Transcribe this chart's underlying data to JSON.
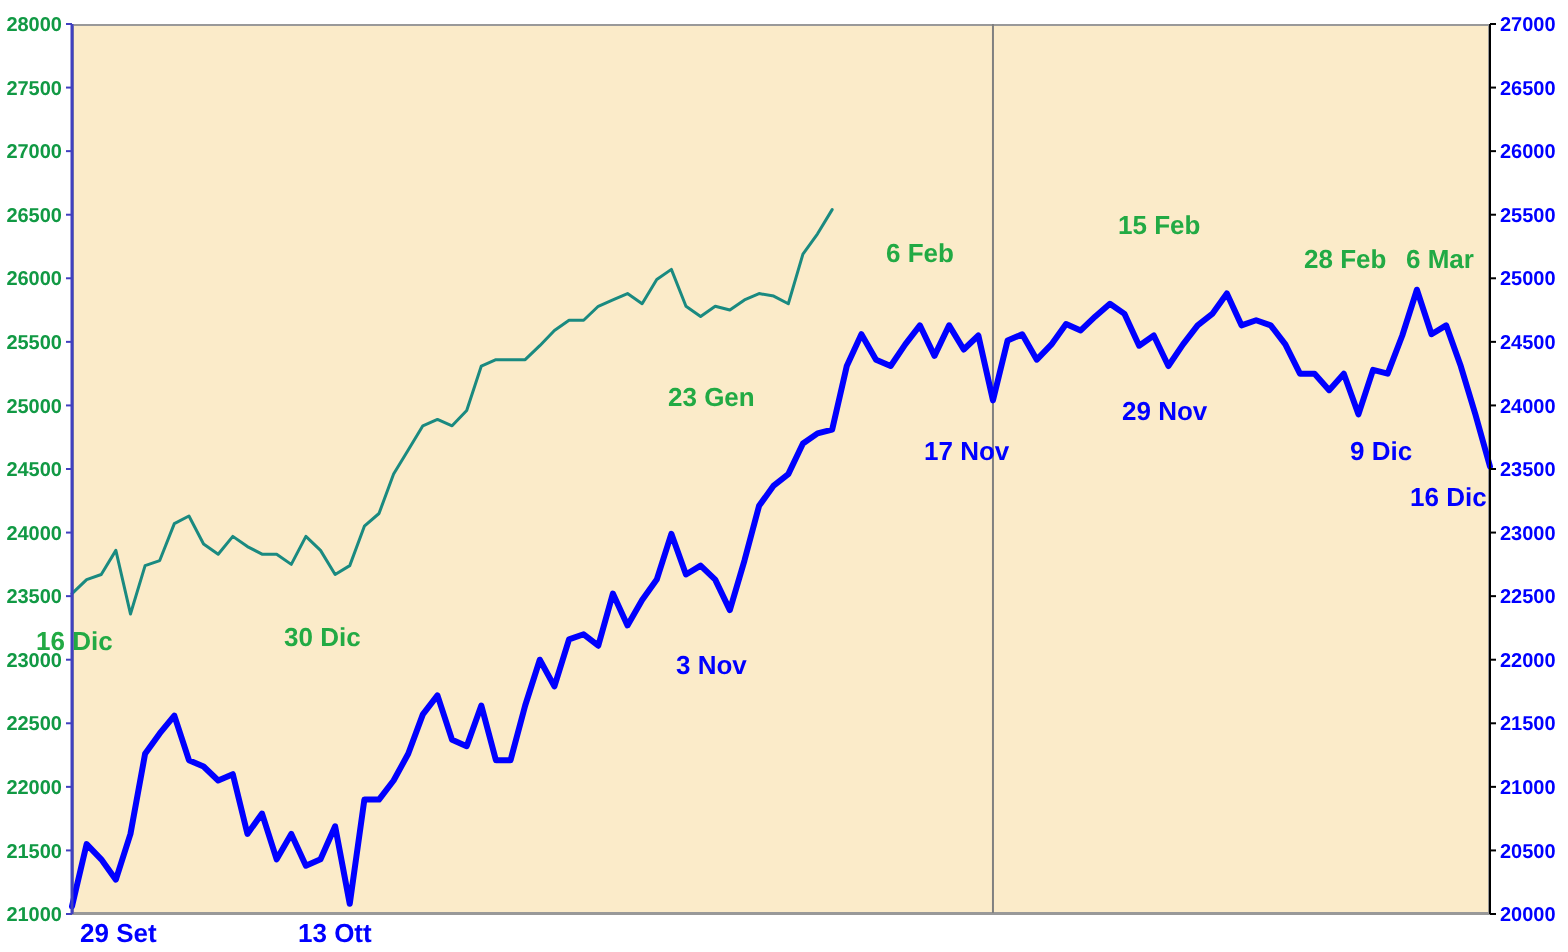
{
  "chart_data": {
    "type": "line",
    "categories": [
      null,
      null,
      null,
      null,
      null,
      null,
      null,
      null,
      null,
      null,
      null,
      null,
      null,
      null,
      null,
      null,
      null,
      null,
      null,
      null,
      null,
      null,
      null,
      null,
      null,
      null,
      null,
      null,
      null,
      null,
      null,
      null,
      null,
      null,
      null,
      null,
      null,
      null,
      null,
      null,
      null,
      null,
      null,
      null,
      null,
      null,
      null,
      null,
      null,
      null,
      null,
      null,
      null,
      null,
      null,
      null,
      null,
      null,
      null,
      null,
      null,
      null,
      null,
      null,
      null,
      null,
      null,
      null,
      null,
      null,
      null,
      null,
      null,
      null,
      null,
      null,
      null,
      null,
      null,
      null,
      null,
      null,
      null,
      null,
      null,
      null,
      null,
      null,
      null,
      null,
      null,
      null,
      null,
      null,
      null,
      null,
      null,
      null
    ],
    "series": [
      {
        "color": "#1a8a80",
        "values": [
          23520,
          23630,
          23670,
          23860,
          23360,
          23740,
          23780,
          24070,
          24130,
          23910,
          23830,
          23970,
          23890,
          23830,
          23830,
          23750,
          23970,
          23860,
          23670,
          23740,
          24050,
          24150,
          24460,
          24650,
          24840,
          24890,
          24840,
          24960,
          25310,
          25360,
          25360,
          25360,
          25470,
          25590,
          25670,
          25670,
          25780,
          25830,
          25880,
          25800,
          25990,
          26070,
          25780,
          25700,
          25780,
          25750,
          25830,
          25880,
          25860,
          25800,
          26190,
          26350,
          26540,
          null,
          null,
          null,
          null,
          null,
          null,
          null,
          null,
          null,
          null,
          null,
          null,
          null,
          null,
          null,
          null,
          null,
          null,
          null,
          null,
          null,
          null,
          null,
          null,
          null,
          null,
          null,
          null,
          null,
          null,
          null,
          null,
          null,
          null,
          null,
          null,
          null,
          null,
          null,
          null,
          null,
          null,
          null,
          null,
          null
        ]
      },
      {
        "color": "#0000ff",
        "axis": "y2",
        "values": [
          20060,
          20550,
          20430,
          20270,
          20630,
          21260,
          21420,
          21560,
          21210,
          21160,
          21050,
          21100,
          20630,
          20790,
          20430,
          20630,
          20380,
          20430,
          20690,
          20080,
          20900,
          20900,
          21050,
          21260,
          21570,
          21720,
          21370,
          21320,
          21640,
          21210,
          21210,
          21640,
          22000,
          21790,
          22160,
          22200,
          22110,
          22520,
          22270,
          22470,
          22630,
          22990,
          22670,
          22740,
          22630,
          22390,
          22780,
          23210,
          23370,
          23460,
          23700,
          23780,
          23810,
          24310,
          24560,
          24360,
          24310,
          24480,
          24630,
          24390,
          24630,
          24440,
          24550,
          24040,
          24510,
          24560,
          24360,
          24480,
          24640,
          24590,
          24700,
          24800,
          24720,
          24470,
          24550,
          24310,
          24480,
          24630,
          24720,
          24880,
          24630,
          24670,
          24630,
          24480,
          24250,
          24250,
          24120,
          24250,
          23930,
          24280,
          24250,
          24550,
          24910,
          24560,
          24630,
          24310,
          23930,
          23520
        ]
      }
    ],
    "ylim": [
      21000,
      28000
    ],
    "yticks": [
      21000,
      21500,
      22000,
      22500,
      23000,
      23500,
      24000,
      24500,
      25000,
      25500,
      26000,
      26500,
      27000,
      27500,
      28000
    ],
    "y2lim": [
      20000,
      27000
    ],
    "y2ticks": [
      20000,
      20500,
      21000,
      21500,
      22000,
      22500,
      23000,
      23500,
      24000,
      24500,
      25000,
      25500,
      26000,
      26500,
      27000
    ],
    "annotations": [
      "29 Set",
      "13 Ott",
      "3 Nov",
      "17 Nov",
      "29 Nov",
      "9 Dic",
      "16 Dic",
      "16 Dic",
      "30 Dic",
      "23 Gen",
      "6 Feb",
      "15 Feb",
      "28 Feb",
      "6 Mar"
    ],
    "tick_labels": "y",
    "legend": false,
    "marker": "none",
    "line_style": "solid"
  }
}
